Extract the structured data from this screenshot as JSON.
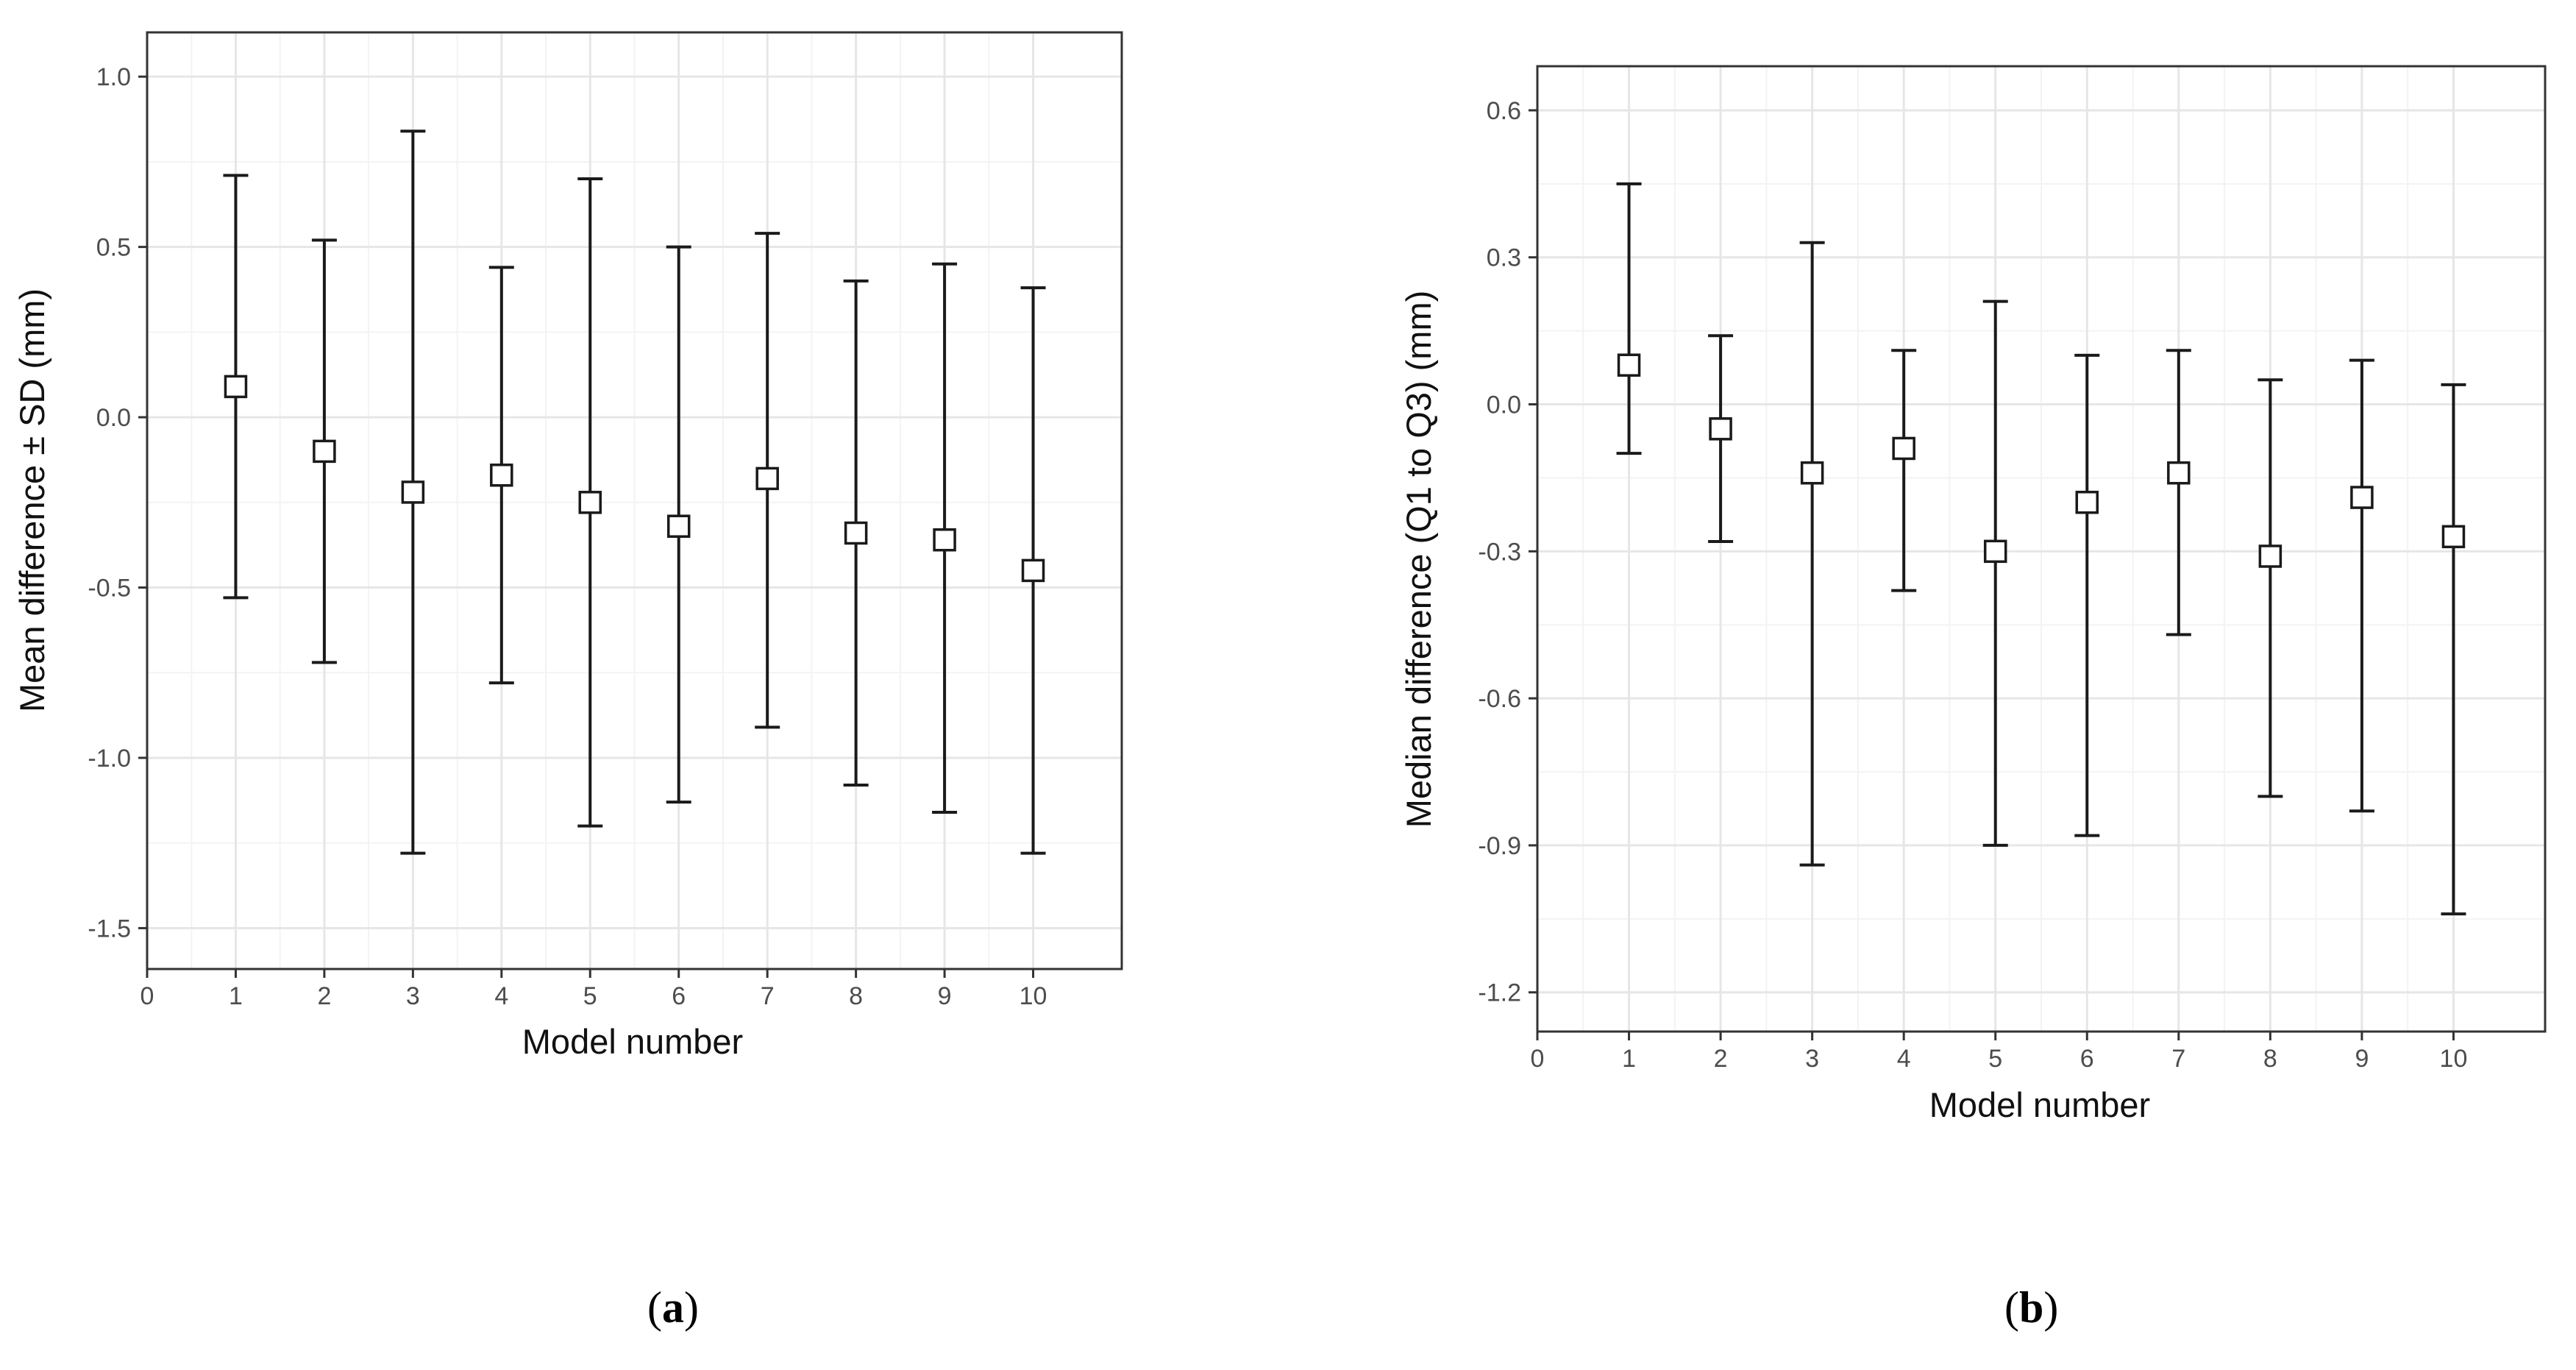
{
  "chart_data": [
    {
      "type": "scatter",
      "panel_label": "a",
      "xlabel": "Model number",
      "ylabel": "Mean difference ± SD (mm)",
      "xlim": [
        0,
        11
      ],
      "ylim": [
        -1.62,
        1.13
      ],
      "x_ticks": [
        0,
        1,
        2,
        3,
        4,
        5,
        6,
        7,
        8,
        9,
        10
      ],
      "y_ticks": [
        -1.5,
        -1.0,
        -0.5,
        0.0,
        0.5,
        1.0
      ],
      "y_tick_labels": [
        "-1.5",
        "-1.0",
        "-0.5",
        "0.0",
        "0.5",
        "1.0"
      ],
      "grid": true,
      "marker": "open-square",
      "points": [
        {
          "x": 1,
          "y": 0.09,
          "low": -0.53,
          "high": 0.71
        },
        {
          "x": 2,
          "y": -0.1,
          "low": -0.72,
          "high": 0.52
        },
        {
          "x": 3,
          "y": -0.22,
          "low": -1.28,
          "high": 0.84
        },
        {
          "x": 4,
          "y": -0.17,
          "low": -0.78,
          "high": 0.44
        },
        {
          "x": 5,
          "y": -0.25,
          "low": -1.2,
          "high": 0.7
        },
        {
          "x": 6,
          "y": -0.32,
          "low": -1.13,
          "high": 0.5
        },
        {
          "x": 7,
          "y": -0.18,
          "low": -0.91,
          "high": 0.54
        },
        {
          "x": 8,
          "y": -0.34,
          "low": -1.08,
          "high": 0.4
        },
        {
          "x": 9,
          "y": -0.36,
          "low": -1.16,
          "high": 0.45
        },
        {
          "x": 10,
          "y": -0.45,
          "low": -1.28,
          "high": 0.38
        }
      ]
    },
    {
      "type": "scatter",
      "panel_label": "b",
      "xlabel": "Model number",
      "ylabel": "Median difference (Q1 to Q3) (mm)",
      "xlim": [
        0,
        11
      ],
      "ylim": [
        -1.28,
        0.69
      ],
      "x_ticks": [
        0,
        1,
        2,
        3,
        4,
        5,
        6,
        7,
        8,
        9,
        10
      ],
      "y_ticks": [
        -1.2,
        -0.9,
        -0.6,
        -0.3,
        0.0,
        0.3,
        0.6
      ],
      "y_tick_labels": [
        "-1.2",
        "-0.9",
        "-0.6",
        "-0.3",
        "0.0",
        "0.3",
        "0.6"
      ],
      "grid": true,
      "marker": "open-square",
      "points": [
        {
          "x": 1,
          "y": 0.08,
          "low": -0.1,
          "high": 0.45
        },
        {
          "x": 2,
          "y": -0.05,
          "low": -0.28,
          "high": 0.14
        },
        {
          "x": 3,
          "y": -0.14,
          "low": -0.94,
          "high": 0.33
        },
        {
          "x": 4,
          "y": -0.09,
          "low": -0.38,
          "high": 0.11
        },
        {
          "x": 5,
          "y": -0.3,
          "low": -0.9,
          "high": 0.21
        },
        {
          "x": 6,
          "y": -0.2,
          "low": -0.88,
          "high": 0.1
        },
        {
          "x": 7,
          "y": -0.14,
          "low": -0.47,
          "high": 0.11
        },
        {
          "x": 8,
          "y": -0.31,
          "low": -0.8,
          "high": 0.05
        },
        {
          "x": 9,
          "y": -0.19,
          "low": -0.83,
          "high": 0.09
        },
        {
          "x": 10,
          "y": -0.27,
          "low": -1.04,
          "high": 0.04
        }
      ]
    }
  ]
}
